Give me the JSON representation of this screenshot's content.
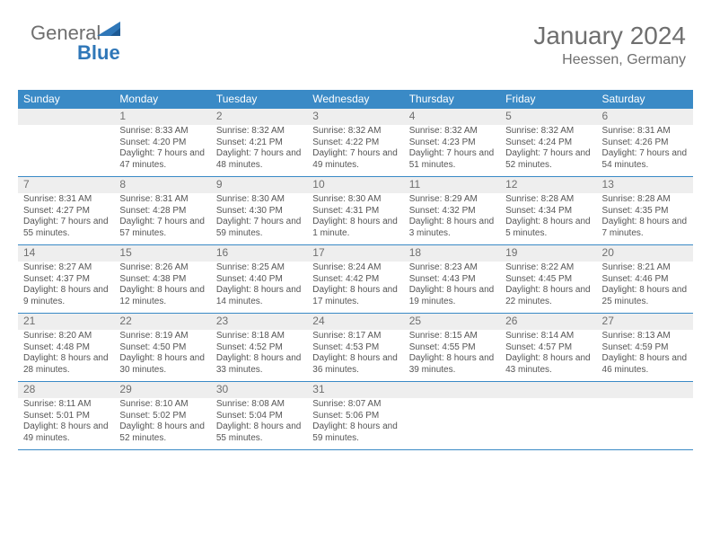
{
  "brand": {
    "part1": "General",
    "part2": "Blue"
  },
  "title": {
    "month": "January 2024",
    "location": "Heessen, Germany"
  },
  "colors": {
    "header_bg": "#3a8ac6",
    "header_fg": "#ffffff",
    "rule": "#3a8ac6",
    "daynum_bg": "#eeeeee",
    "text": "#555555",
    "muted": "#6f6f6f",
    "brand_blue": "#2f77b8"
  },
  "days_of_week": [
    "Sunday",
    "Monday",
    "Tuesday",
    "Wednesday",
    "Thursday",
    "Friday",
    "Saturday"
  ],
  "weeks": [
    [
      {
        "n": "",
        "sunrise": "",
        "sunset": "",
        "daylight": ""
      },
      {
        "n": "1",
        "sunrise": "Sunrise: 8:33 AM",
        "sunset": "Sunset: 4:20 PM",
        "daylight": "Daylight: 7 hours and 47 minutes."
      },
      {
        "n": "2",
        "sunrise": "Sunrise: 8:32 AM",
        "sunset": "Sunset: 4:21 PM",
        "daylight": "Daylight: 7 hours and 48 minutes."
      },
      {
        "n": "3",
        "sunrise": "Sunrise: 8:32 AM",
        "sunset": "Sunset: 4:22 PM",
        "daylight": "Daylight: 7 hours and 49 minutes."
      },
      {
        "n": "4",
        "sunrise": "Sunrise: 8:32 AM",
        "sunset": "Sunset: 4:23 PM",
        "daylight": "Daylight: 7 hours and 51 minutes."
      },
      {
        "n": "5",
        "sunrise": "Sunrise: 8:32 AM",
        "sunset": "Sunset: 4:24 PM",
        "daylight": "Daylight: 7 hours and 52 minutes."
      },
      {
        "n": "6",
        "sunrise": "Sunrise: 8:31 AM",
        "sunset": "Sunset: 4:26 PM",
        "daylight": "Daylight: 7 hours and 54 minutes."
      }
    ],
    [
      {
        "n": "7",
        "sunrise": "Sunrise: 8:31 AM",
        "sunset": "Sunset: 4:27 PM",
        "daylight": "Daylight: 7 hours and 55 minutes."
      },
      {
        "n": "8",
        "sunrise": "Sunrise: 8:31 AM",
        "sunset": "Sunset: 4:28 PM",
        "daylight": "Daylight: 7 hours and 57 minutes."
      },
      {
        "n": "9",
        "sunrise": "Sunrise: 8:30 AM",
        "sunset": "Sunset: 4:30 PM",
        "daylight": "Daylight: 7 hours and 59 minutes."
      },
      {
        "n": "10",
        "sunrise": "Sunrise: 8:30 AM",
        "sunset": "Sunset: 4:31 PM",
        "daylight": "Daylight: 8 hours and 1 minute."
      },
      {
        "n": "11",
        "sunrise": "Sunrise: 8:29 AM",
        "sunset": "Sunset: 4:32 PM",
        "daylight": "Daylight: 8 hours and 3 minutes."
      },
      {
        "n": "12",
        "sunrise": "Sunrise: 8:28 AM",
        "sunset": "Sunset: 4:34 PM",
        "daylight": "Daylight: 8 hours and 5 minutes."
      },
      {
        "n": "13",
        "sunrise": "Sunrise: 8:28 AM",
        "sunset": "Sunset: 4:35 PM",
        "daylight": "Daylight: 8 hours and 7 minutes."
      }
    ],
    [
      {
        "n": "14",
        "sunrise": "Sunrise: 8:27 AM",
        "sunset": "Sunset: 4:37 PM",
        "daylight": "Daylight: 8 hours and 9 minutes."
      },
      {
        "n": "15",
        "sunrise": "Sunrise: 8:26 AM",
        "sunset": "Sunset: 4:38 PM",
        "daylight": "Daylight: 8 hours and 12 minutes."
      },
      {
        "n": "16",
        "sunrise": "Sunrise: 8:25 AM",
        "sunset": "Sunset: 4:40 PM",
        "daylight": "Daylight: 8 hours and 14 minutes."
      },
      {
        "n": "17",
        "sunrise": "Sunrise: 8:24 AM",
        "sunset": "Sunset: 4:42 PM",
        "daylight": "Daylight: 8 hours and 17 minutes."
      },
      {
        "n": "18",
        "sunrise": "Sunrise: 8:23 AM",
        "sunset": "Sunset: 4:43 PM",
        "daylight": "Daylight: 8 hours and 19 minutes."
      },
      {
        "n": "19",
        "sunrise": "Sunrise: 8:22 AM",
        "sunset": "Sunset: 4:45 PM",
        "daylight": "Daylight: 8 hours and 22 minutes."
      },
      {
        "n": "20",
        "sunrise": "Sunrise: 8:21 AM",
        "sunset": "Sunset: 4:46 PM",
        "daylight": "Daylight: 8 hours and 25 minutes."
      }
    ],
    [
      {
        "n": "21",
        "sunrise": "Sunrise: 8:20 AM",
        "sunset": "Sunset: 4:48 PM",
        "daylight": "Daylight: 8 hours and 28 minutes."
      },
      {
        "n": "22",
        "sunrise": "Sunrise: 8:19 AM",
        "sunset": "Sunset: 4:50 PM",
        "daylight": "Daylight: 8 hours and 30 minutes."
      },
      {
        "n": "23",
        "sunrise": "Sunrise: 8:18 AM",
        "sunset": "Sunset: 4:52 PM",
        "daylight": "Daylight: 8 hours and 33 minutes."
      },
      {
        "n": "24",
        "sunrise": "Sunrise: 8:17 AM",
        "sunset": "Sunset: 4:53 PM",
        "daylight": "Daylight: 8 hours and 36 minutes."
      },
      {
        "n": "25",
        "sunrise": "Sunrise: 8:15 AM",
        "sunset": "Sunset: 4:55 PM",
        "daylight": "Daylight: 8 hours and 39 minutes."
      },
      {
        "n": "26",
        "sunrise": "Sunrise: 8:14 AM",
        "sunset": "Sunset: 4:57 PM",
        "daylight": "Daylight: 8 hours and 43 minutes."
      },
      {
        "n": "27",
        "sunrise": "Sunrise: 8:13 AM",
        "sunset": "Sunset: 4:59 PM",
        "daylight": "Daylight: 8 hours and 46 minutes."
      }
    ],
    [
      {
        "n": "28",
        "sunrise": "Sunrise: 8:11 AM",
        "sunset": "Sunset: 5:01 PM",
        "daylight": "Daylight: 8 hours and 49 minutes."
      },
      {
        "n": "29",
        "sunrise": "Sunrise: 8:10 AM",
        "sunset": "Sunset: 5:02 PM",
        "daylight": "Daylight: 8 hours and 52 minutes."
      },
      {
        "n": "30",
        "sunrise": "Sunrise: 8:08 AM",
        "sunset": "Sunset: 5:04 PM",
        "daylight": "Daylight: 8 hours and 55 minutes."
      },
      {
        "n": "31",
        "sunrise": "Sunrise: 8:07 AM",
        "sunset": "Sunset: 5:06 PM",
        "daylight": "Daylight: 8 hours and 59 minutes."
      },
      {
        "n": "",
        "sunrise": "",
        "sunset": "",
        "daylight": ""
      },
      {
        "n": "",
        "sunrise": "",
        "sunset": "",
        "daylight": ""
      },
      {
        "n": "",
        "sunrise": "",
        "sunset": "",
        "daylight": ""
      }
    ]
  ]
}
